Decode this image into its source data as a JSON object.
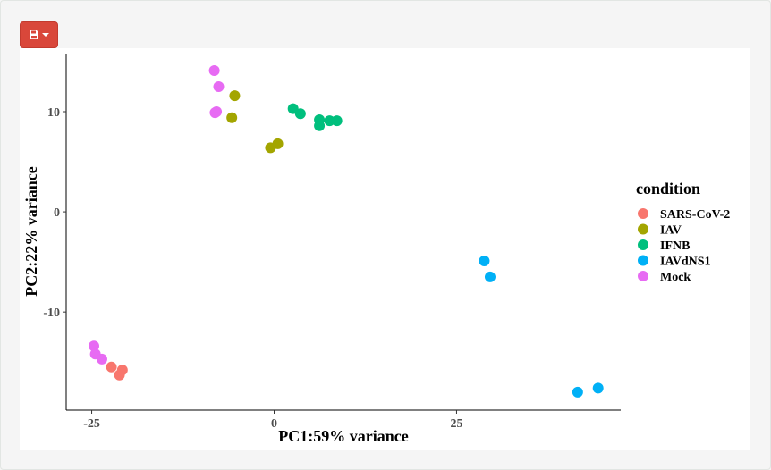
{
  "toolbar": {
    "save_icon": "floppy-disk-icon",
    "dropdown_icon": "caret-down-icon",
    "button_color": "#d9473a"
  },
  "chart_data": {
    "type": "scatter",
    "xlabel": "PC1:59% variance",
    "ylabel": "PC2:22% variance",
    "xlim": [
      -28.5,
      47.5
    ],
    "ylim": [
      -19.8,
      15.8
    ],
    "xticks": [
      -25,
      0,
      25
    ],
    "xtick_labels": [
      "-25",
      "0",
      "25"
    ],
    "yticks": [
      -10,
      0,
      10
    ],
    "ytick_labels": [
      "-10",
      "0",
      "10"
    ],
    "grid": false,
    "legend_title": "condition",
    "legend_position": "right",
    "series": [
      {
        "name": "SARS-CoV-2",
        "color": "#F8766D",
        "points": [
          [
            -22.3,
            -15.5
          ],
          [
            -20.8,
            -15.8
          ],
          [
            -21.2,
            -16.3
          ]
        ]
      },
      {
        "name": "IAV",
        "color": "#A3A500",
        "points": [
          [
            -5.4,
            11.6
          ],
          [
            -5.8,
            9.4
          ],
          [
            0.5,
            6.8
          ],
          [
            -0.5,
            6.4
          ]
        ]
      },
      {
        "name": "IFNB",
        "color": "#00BF7D",
        "points": [
          [
            2.6,
            10.3
          ],
          [
            3.6,
            9.8
          ],
          [
            6.2,
            9.2
          ],
          [
            7.6,
            9.1
          ],
          [
            8.6,
            9.1
          ],
          [
            6.2,
            8.6
          ]
        ]
      },
      {
        "name": "IAVdNS1",
        "color": "#00B0F6",
        "points": [
          [
            28.8,
            -4.9
          ],
          [
            29.6,
            -6.5
          ],
          [
            41.6,
            -18.0
          ],
          [
            44.4,
            -17.6
          ]
        ]
      },
      {
        "name": "Mock",
        "color": "#E76BF3",
        "points": [
          [
            -8.2,
            14.1
          ],
          [
            -7.6,
            12.5
          ],
          [
            -7.9,
            10.0
          ],
          [
            -8.1,
            9.9
          ],
          [
            -24.7,
            -13.4
          ],
          [
            -24.5,
            -14.2
          ],
          [
            -23.6,
            -14.7
          ]
        ]
      }
    ]
  }
}
